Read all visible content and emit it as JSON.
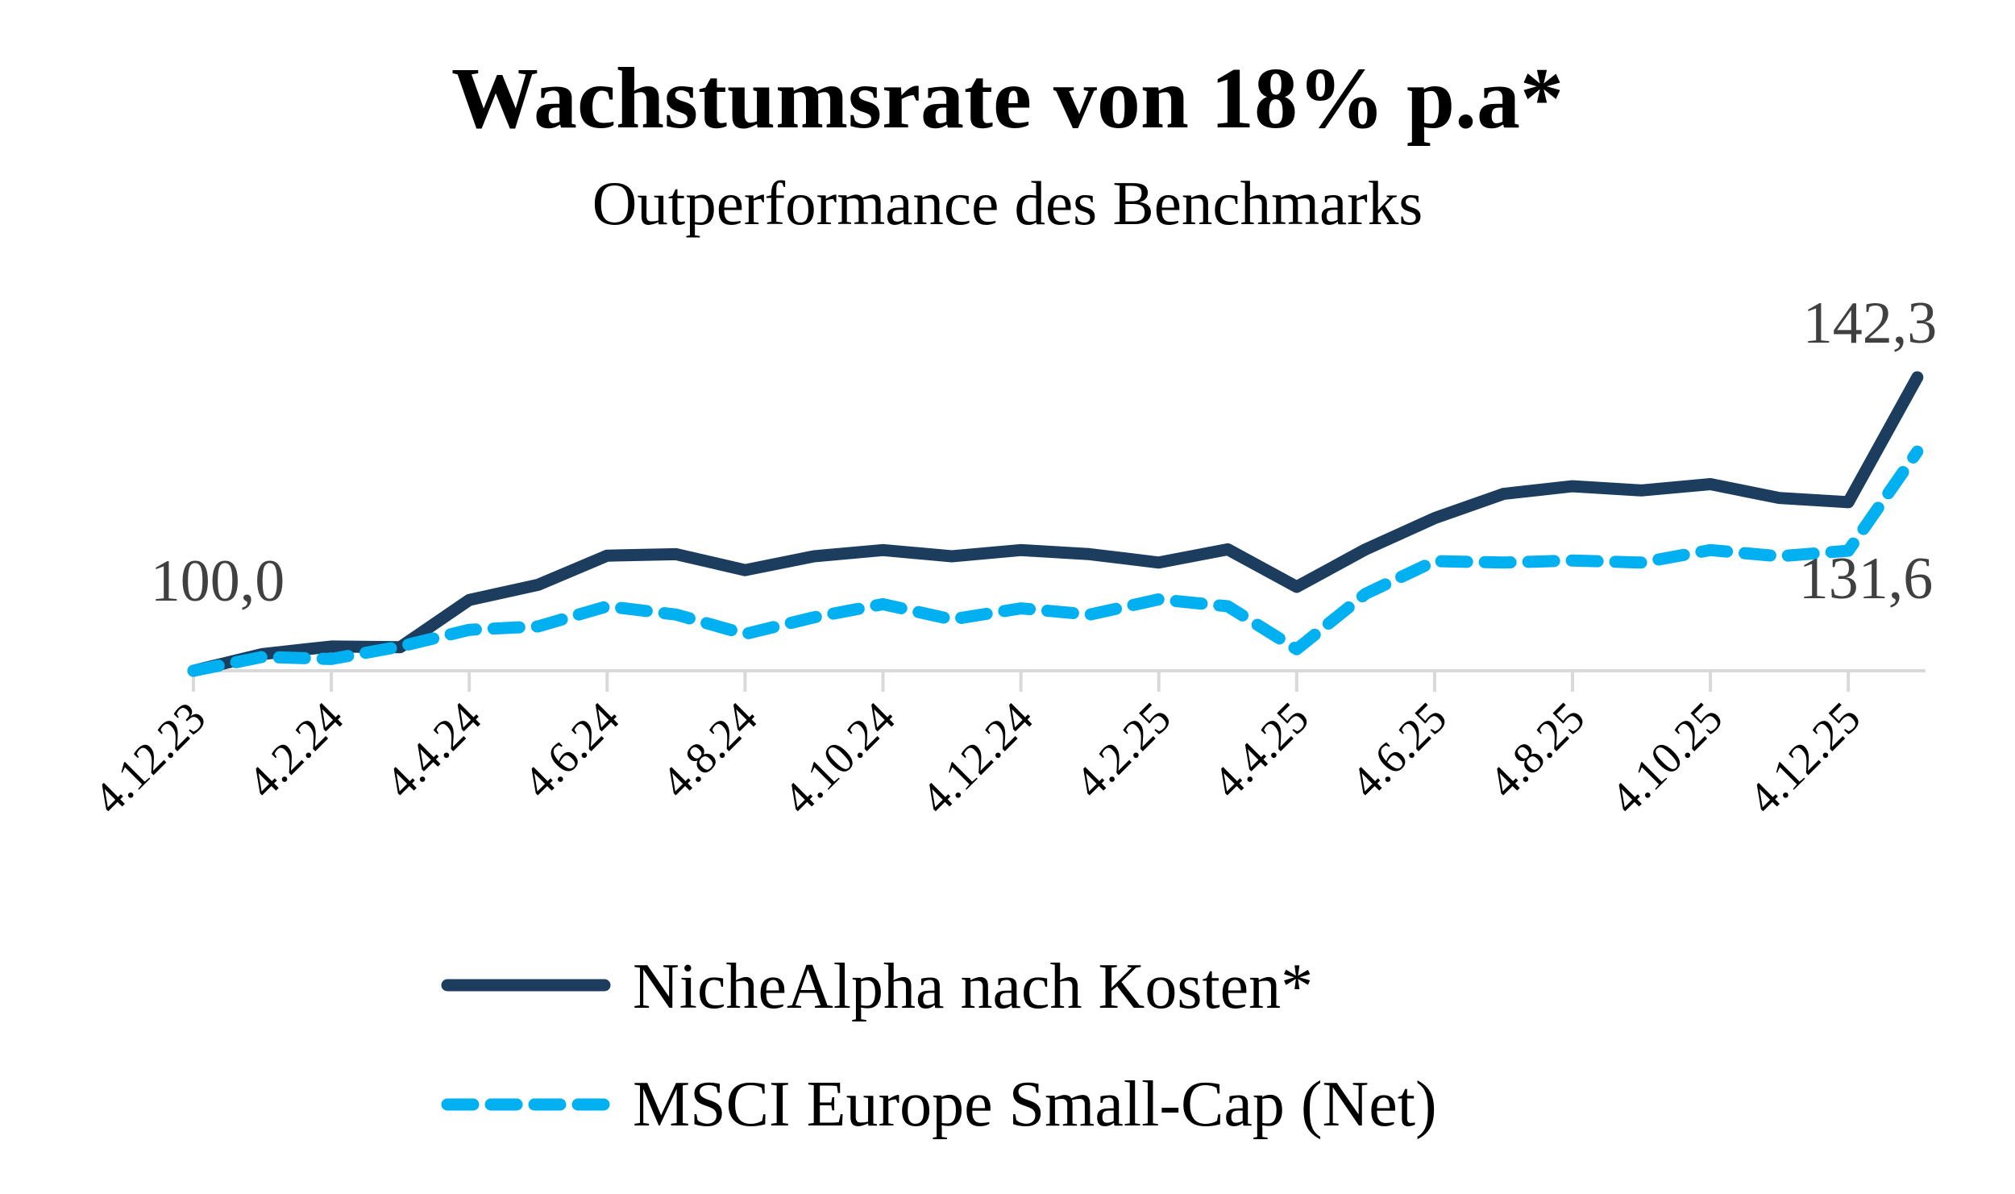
{
  "chart_data": {
    "type": "line",
    "title": "Wachstumsrate von 18% p.a*",
    "subtitle": "Outperformance des Benchmarks",
    "xlabel": "",
    "ylabel": "",
    "ylim": [
      95,
      150
    ],
    "grid": false,
    "legend_position": "bottom",
    "tick_labels": [
      "4.12.23",
      "4.2.24",
      "4.4.24",
      "4.6.24",
      "4.8.24",
      "4.10.24",
      "4.12.24",
      "4.2.25",
      "4.4.25",
      "4.6.25",
      "4.8.25",
      "4.10.25",
      "4.12.25"
    ],
    "categories": [
      "4.12.23",
      "4.1.24",
      "4.2.24",
      "4.3.24",
      "4.4.24",
      "4.5.24",
      "4.6.24",
      "4.7.24",
      "4.8.24",
      "4.9.24",
      "4.10.24",
      "4.11.24",
      "4.12.24",
      "4.1.25",
      "4.2.25",
      "4.3.25",
      "4.4.25",
      "4.5.25",
      "4.6.25",
      "4.7.25",
      "4.8.25",
      "4.9.25",
      "4.10.25",
      "4.11.25",
      "4.12.25",
      "4.1.26"
    ],
    "series": [
      {
        "name": "NicheAlpha nach Kosten*",
        "color": "#1c3d5e",
        "style": "solid",
        "values": [
          100.0,
          102.4,
          103.5,
          103.4,
          110.2,
          112.4,
          116.6,
          116.8,
          114.5,
          116.5,
          117.4,
          116.5,
          117.4,
          116.8,
          115.6,
          117.5,
          112.1,
          117.5,
          122.0,
          125.5,
          126.6,
          126.0,
          126.9,
          124.9,
          124.3,
          142.3
        ],
        "end_label": "142,3"
      },
      {
        "name": "MSCI Europe Small-Cap (Net)",
        "color": "#00b0f0",
        "style": "dashed",
        "values": [
          100.0,
          102.0,
          101.7,
          103.5,
          105.9,
          106.4,
          109.3,
          108.1,
          105.3,
          107.7,
          109.6,
          107.4,
          109.0,
          108.1,
          110.3,
          109.3,
          103.1,
          111.1,
          115.8,
          115.6,
          115.9,
          115.6,
          117.4,
          116.5,
          117.3,
          131.6
        ],
        "end_label": "131,6"
      }
    ],
    "start_label": "100,0"
  }
}
